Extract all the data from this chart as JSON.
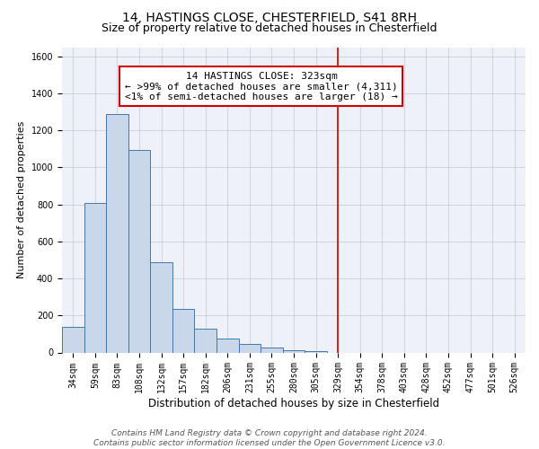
{
  "title": "14, HASTINGS CLOSE, CHESTERFIELD, S41 8RH",
  "subtitle": "Size of property relative to detached houses in Chesterfield",
  "xlabel": "Distribution of detached houses by size in Chesterfield",
  "ylabel": "Number of detached properties",
  "footer_line1": "Contains HM Land Registry data © Crown copyright and database right 2024.",
  "footer_line2": "Contains public sector information licensed under the Open Government Licence v3.0.",
  "bin_labels": [
    "34sqm",
    "59sqm",
    "83sqm",
    "108sqm",
    "132sqm",
    "157sqm",
    "182sqm",
    "206sqm",
    "231sqm",
    "255sqm",
    "280sqm",
    "305sqm",
    "329sqm",
    "354sqm",
    "378sqm",
    "403sqm",
    "428sqm",
    "452sqm",
    "477sqm",
    "501sqm",
    "526sqm"
  ],
  "bar_values": [
    140,
    810,
    1290,
    1095,
    490,
    235,
    130,
    75,
    45,
    25,
    10,
    5,
    0,
    0,
    0,
    0,
    0,
    0,
    0,
    0,
    0
  ],
  "bar_color": "#c8d8ea",
  "bar_edgecolor": "#4477aa",
  "vline_x": 12.0,
  "vline_color": "#cc0000",
  "annotation_line1": "14 HASTINGS CLOSE: 323sqm",
  "annotation_line2": "← >99% of detached houses are smaller (4,311)",
  "annotation_line3": "<1% of semi-detached houses are larger (18) →",
  "ylim": [
    0,
    1650
  ],
  "yticks": [
    0,
    200,
    400,
    600,
    800,
    1000,
    1200,
    1400,
    1600
  ],
  "background_color": "#ffffff",
  "plot_background": "#eef2f8",
  "title_fontsize": 10,
  "subtitle_fontsize": 9,
  "xlabel_fontsize": 8.5,
  "ylabel_fontsize": 8,
  "tick_fontsize": 7,
  "annotation_fontsize": 8,
  "footer_fontsize": 6.5
}
